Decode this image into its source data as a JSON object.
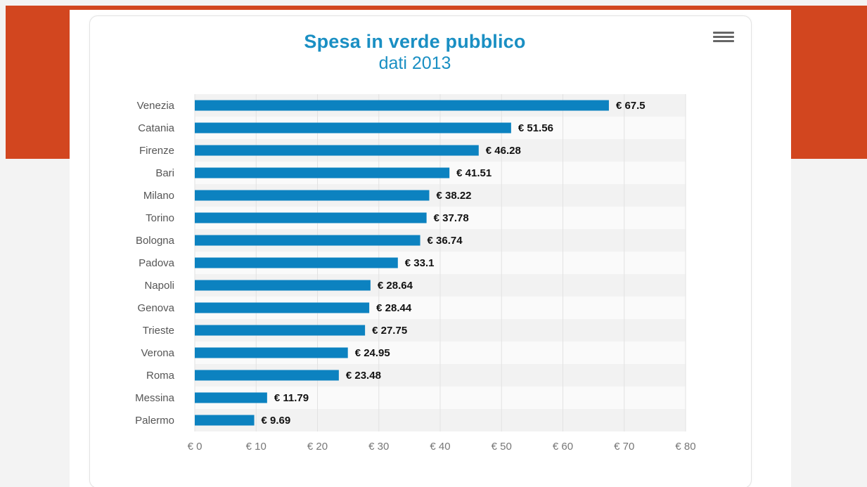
{
  "chart_data": {
    "type": "bar",
    "orientation": "horizontal",
    "title": "Spesa in verde pubblico",
    "subtitle": "dati 2013",
    "categories": [
      "Venezia",
      "Catania",
      "Firenze",
      "Bari",
      "Milano",
      "Torino",
      "Bologna",
      "Padova",
      "Napoli",
      "Genova",
      "Trieste",
      "Verona",
      "Roma",
      "Messina",
      "Palermo"
    ],
    "values": [
      67.5,
      51.56,
      46.28,
      41.51,
      38.22,
      37.78,
      36.74,
      33.1,
      28.64,
      28.44,
      27.75,
      24.95,
      23.48,
      11.79,
      9.69
    ],
    "data_labels": [
      "€ 67.5",
      "€ 51.56",
      "€ 46.28",
      "€ 41.51",
      "€ 38.22",
      "€ 37.78",
      "€ 36.74",
      "€ 33.1",
      "€ 28.64",
      "€ 28.44",
      "€ 27.75",
      "€ 24.95",
      "€ 23.48",
      "€ 11.79",
      "€ 9.69"
    ],
    "xlim": [
      0,
      80
    ],
    "x_ticks": [
      0,
      10,
      20,
      30,
      40,
      50,
      60,
      70,
      80
    ],
    "x_tick_labels": [
      "€ 0",
      "€ 10",
      "€ 20",
      "€ 30",
      "€ 40",
      "€ 50",
      "€ 60",
      "€ 70",
      "€ 80"
    ],
    "grid": true,
    "legend": false,
    "bar_color": "#0c82c0"
  },
  "colors": {
    "brand_orange": "#d2461f",
    "title_blue": "#1a8fc3"
  },
  "menu": {
    "icon": "hamburger-menu-icon"
  }
}
